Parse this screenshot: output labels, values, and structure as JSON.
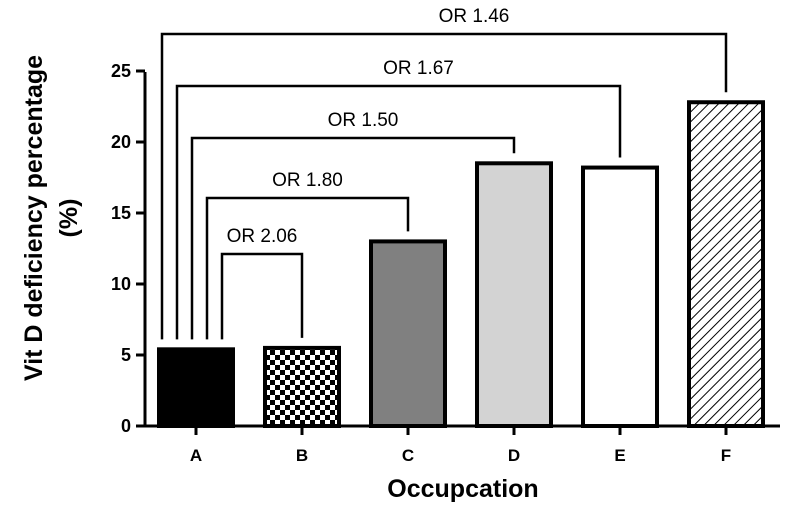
{
  "chart_data": {
    "type": "bar",
    "categories": [
      "A",
      "B",
      "C",
      "D",
      "E",
      "F"
    ],
    "values": [
      5.4,
      5.5,
      13.0,
      18.5,
      18.2,
      22.8
    ],
    "bar_fills": [
      "solid-black",
      "checkerboard",
      "solid-dark-gray",
      "solid-light-gray",
      "white",
      "diagonal-hatch"
    ],
    "colors": {
      "black": "#000000",
      "dark_gray": "#808080",
      "light_gray": "#d3d3d3",
      "white": "#ffffff"
    },
    "xlabel": "Occupcation",
    "ylabel_line1": "Vit D deficiency percentage",
    "ylabel_line2": "(%)",
    "ylim": [
      0,
      25
    ],
    "yticks": [
      0,
      5,
      10,
      15,
      20,
      25
    ],
    "grid": false,
    "annotations": [
      {
        "label": "OR 2.06",
        "from": "A",
        "to": "B"
      },
      {
        "label": "OR 1.80",
        "from": "A",
        "to": "C"
      },
      {
        "label": "OR 1.50",
        "from": "A",
        "to": "D"
      },
      {
        "label": "OR 1.67",
        "from": "A",
        "to": "E"
      },
      {
        "label": "OR 1.46",
        "from": "A",
        "to": "F"
      }
    ]
  }
}
